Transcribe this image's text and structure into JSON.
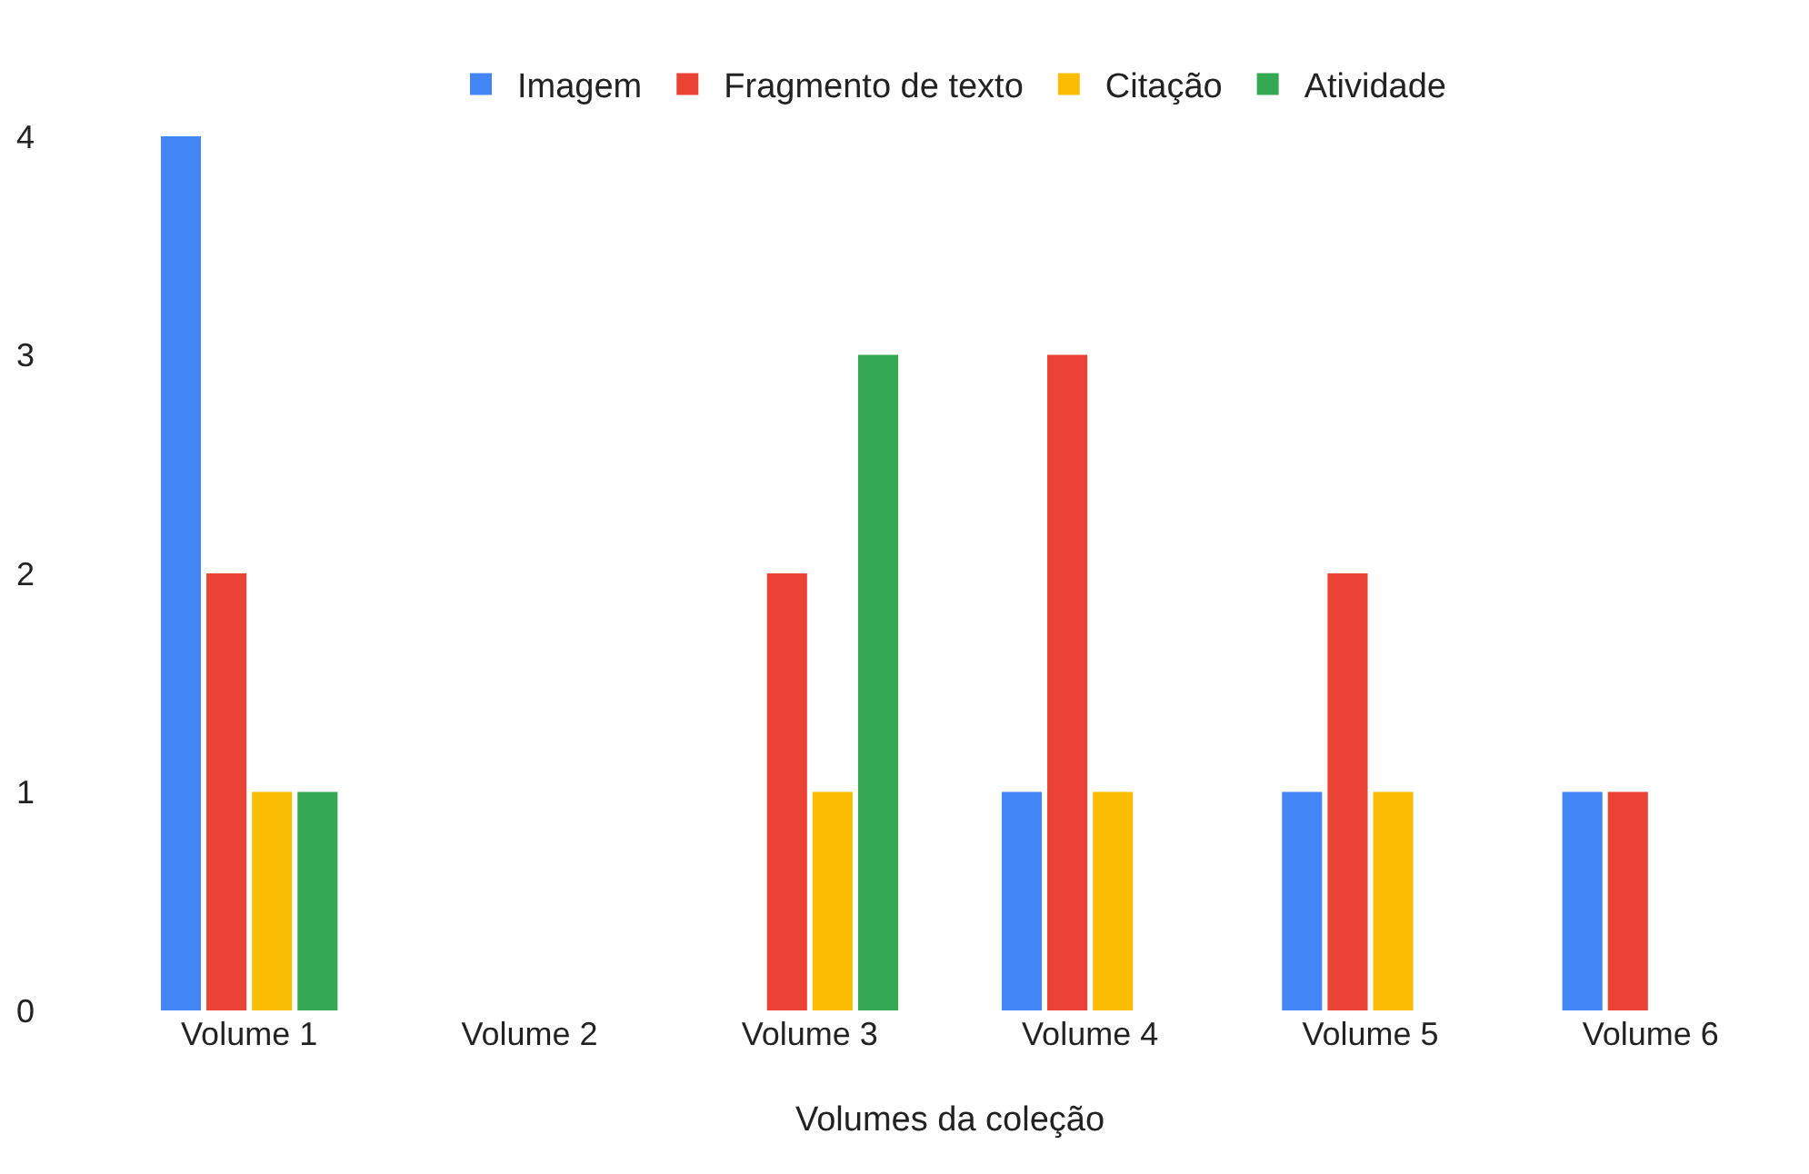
{
  "chart_data": {
    "type": "bar",
    "xlabel": "Volumes da coleção",
    "categories": [
      "Volume 1",
      "Volume 2",
      "Volume 3",
      "Volume 4",
      "Volume 5",
      "Volume 6"
    ],
    "series": [
      {
        "name": "Imagem",
        "color": "#4285f4",
        "values": [
          4,
          0,
          0,
          1,
          1,
          1
        ]
      },
      {
        "name": "Fragmento de texto",
        "color": "#ea4335",
        "values": [
          2,
          0,
          2,
          3,
          2,
          1
        ]
      },
      {
        "name": "Citação",
        "color": "#fbbc04",
        "values": [
          1,
          0,
          1,
          1,
          1,
          0
        ]
      },
      {
        "name": "Atividade",
        "color": "#34a853",
        "values": [
          1,
          0,
          3,
          0,
          0,
          0
        ]
      }
    ],
    "ylim": [
      0,
      4
    ],
    "yticks": [
      0,
      1,
      2,
      3,
      4
    ],
    "grid": false,
    "legend": "top"
  }
}
